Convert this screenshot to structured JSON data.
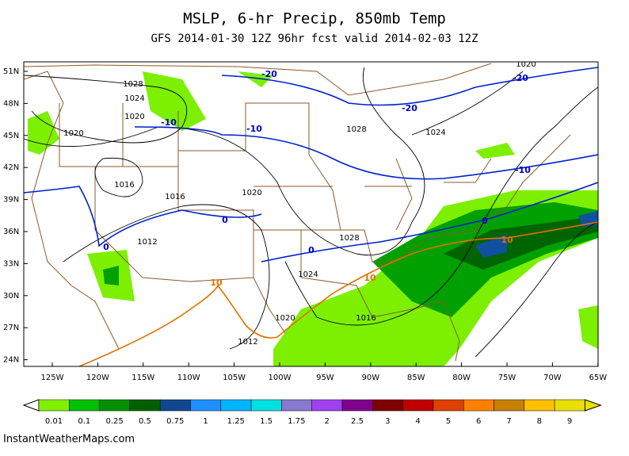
{
  "title": "MSLP, 6-hr Precip, 850mb Temp",
  "subtitle": "GFS 2014-01-30 12Z 96hr fcst valid 2014-02-03 12Z",
  "map": {
    "lat_labels": [
      "51N",
      "48N",
      "45N",
      "42N",
      "39N",
      "36N",
      "33N",
      "30N",
      "27N",
      "24N"
    ],
    "lon_labels": [
      "125W",
      "120W",
      "115W",
      "110W",
      "105W",
      "100W",
      "95W",
      "90W",
      "85W",
      "80W",
      "75W",
      "70W",
      "65W"
    ],
    "isobar_labels": [
      "1028",
      "1024",
      "1020",
      "1020",
      "1016",
      "1016",
      "1020",
      "1012",
      "1028",
      "1024",
      "1020",
      "1016",
      "1012",
      "1028",
      "1024",
      "1020"
    ],
    "temp_labels": [
      "-20",
      "-20",
      "-20",
      "-10",
      "-10",
      "-10",
      "0",
      "0",
      "0",
      "0"
    ],
    "warm_labels": [
      "10",
      "10",
      "10"
    ]
  },
  "colorbar": {
    "labels": [
      "0.01",
      "0.1",
      "0.25",
      "0.5",
      "0.75",
      "1",
      "1.25",
      "1.5",
      "1.75",
      "2",
      "2.5",
      "3",
      "4",
      "5",
      "6",
      "7",
      "8",
      "9"
    ],
    "colors": [
      "#80f000",
      "#00c000",
      "#009000",
      "#006000",
      "#104890",
      "#1e90ff",
      "#00b4ff",
      "#00e0e0",
      "#8878d0",
      "#a040f0",
      "#800090",
      "#800000",
      "#c00000",
      "#e04000",
      "#ff8000",
      "#c88000",
      "#ffc000",
      "#e8e000"
    ]
  },
  "credit": "InstantWeatherMaps.com"
}
